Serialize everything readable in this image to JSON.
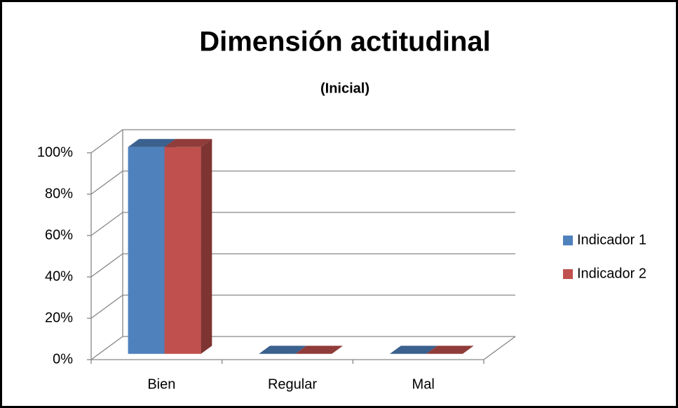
{
  "chart_data": {
    "type": "bar3d",
    "title": "Dimensión actitudinal",
    "subtitle": "(Inicial)",
    "categories": [
      "Bien",
      "Regular",
      "Mal"
    ],
    "series": [
      {
        "name": "Indicador 1",
        "color": "#4f81bd",
        "values": [
          100,
          0,
          0
        ]
      },
      {
        "name": "Indicador 2",
        "color": "#c0504d",
        "values": [
          100,
          0,
          0
        ]
      }
    ],
    "ylim": [
      0,
      100
    ],
    "yticks": [
      {
        "value": 0,
        "label": "0%"
      },
      {
        "value": 20,
        "label": "20%"
      },
      {
        "value": 40,
        "label": "40%"
      },
      {
        "value": 60,
        "label": "60%"
      },
      {
        "value": 80,
        "label": "80%"
      },
      {
        "value": 100,
        "label": "100%"
      }
    ],
    "grid": true,
    "legend": "right"
  }
}
